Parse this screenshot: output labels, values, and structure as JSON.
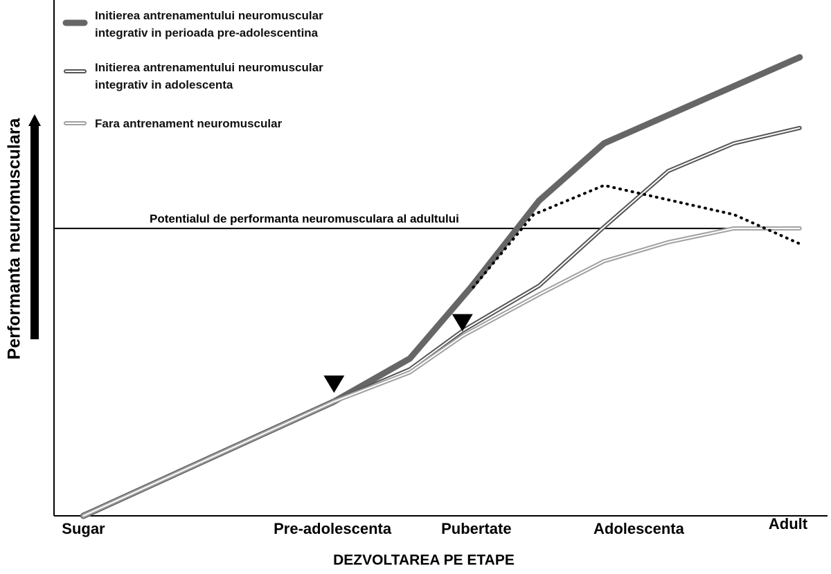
{
  "chart_data": {
    "type": "line",
    "y_label": "Performanta neuromusculara",
    "x_label": "DEZVOLTAREA PE ETAPE",
    "xlim": [
      0,
      100
    ],
    "ylim": [
      0,
      100
    ],
    "xticks": [
      {
        "value": 3.8,
        "label": "Sugar"
      },
      {
        "value": 36,
        "label": "Pre-adolescenta"
      },
      {
        "value": 54.6,
        "label": "Pubertate"
      },
      {
        "value": 75.6,
        "label": "Adolescenta"
      },
      {
        "value": 94.9,
        "label": "Adult"
      }
    ],
    "series": [
      {
        "name": "Initierea antrenamentului neuromuscular integrativ in perioada pre-adolescentina",
        "color": "#666666",
        "style": "thick",
        "x": [
          3.8,
          36.2,
          46.0,
          53.9,
          62.7,
          71.1,
          96.4
        ],
        "y": [
          0,
          22.3,
          30.7,
          44.6,
          61.5,
          72.7,
          89.5
        ]
      },
      {
        "name": "Initierea antrenamentului neuromuscular integrativ in adolescenta",
        "color": "#555555",
        "style": "double",
        "x": [
          3.8,
          36.2,
          46.0,
          52.8,
          62.7,
          70.9,
          79.4,
          87.9,
          96.4
        ],
        "y": [
          0,
          22.3,
          28.6,
          36.1,
          44.9,
          56.1,
          67.3,
          72.7,
          75.7
        ]
      },
      {
        "name": "Fara antrenament neuromuscular",
        "color": "#a0a0a0",
        "style": "double",
        "x": [
          3.8,
          36.2,
          46.0,
          52.8,
          62.7,
          71.1,
          79.4,
          87.9,
          96.4
        ],
        "y": [
          0,
          22.3,
          28.0,
          35.1,
          43.2,
          49.7,
          53.4,
          56.1,
          56.1
        ]
      },
      {
        "color": "#000000",
        "style": "dotted",
        "x": [
          54.2,
          62.0,
          71.1,
          87.9,
          96.4
        ],
        "y": [
          44.6,
          58.8,
          64.5,
          58.8,
          53.1
        ]
      }
    ],
    "reference_line": {
      "y": 56.1,
      "label": "Potentialul de performanta neuromusculara al adultului"
    },
    "markers": [
      {
        "x": 36.2,
        "y": 24
      },
      {
        "x": 52.8,
        "y": 36
      }
    ]
  }
}
